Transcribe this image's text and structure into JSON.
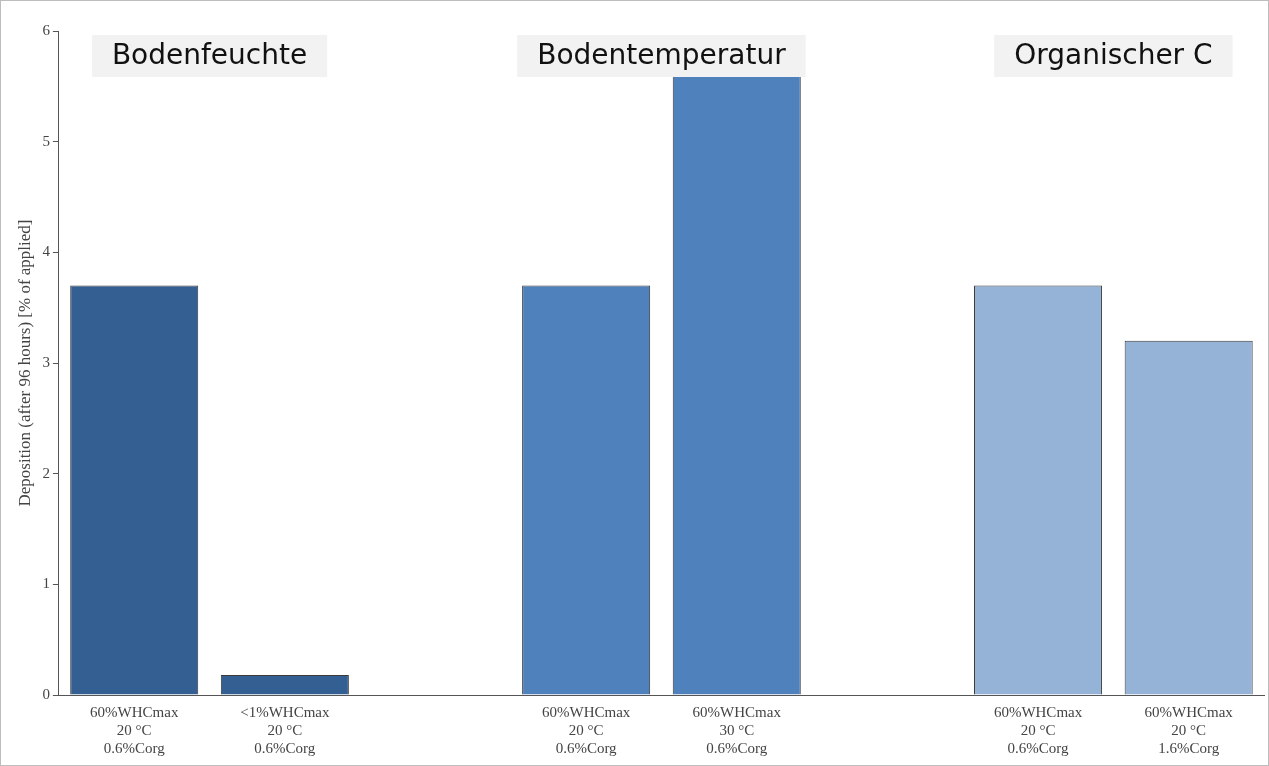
{
  "chart_data": {
    "type": "bar",
    "ylabel": "Deposition (after 96 hours) [% of applied]",
    "categories": [
      "60%WHCmax\n20 °C\n0.6%Corg",
      "<1%WHCmax\n20 °C\n0.6%Corg",
      null,
      "60%WHCmax\n20 °C\n0.6%Corg",
      "60%WHCmax\n30 °C\n0.6%Corg",
      null,
      "60%WHCmax\n20 °C\n0.6%Corg",
      "60%WHCmax\n20 °C\n1.6%Corg"
    ],
    "values": [
      3.7,
      0.18,
      null,
      3.7,
      5.6,
      null,
      3.7,
      3.2
    ],
    "colors": [
      "#335f92",
      "#335f92",
      "#335f92",
      "#4f81bd",
      "#4f81bd",
      "#4f81bd",
      "#95b3d7",
      "#95b3d7"
    ],
    "ylim": [
      0,
      6
    ],
    "yticks": [
      0,
      1,
      2,
      3,
      4,
      5,
      6
    ],
    "grid": false,
    "legend": false,
    "annotations": [
      "Bodenfeuchte",
      "Bodentemperatur",
      "Organischer C"
    ]
  }
}
